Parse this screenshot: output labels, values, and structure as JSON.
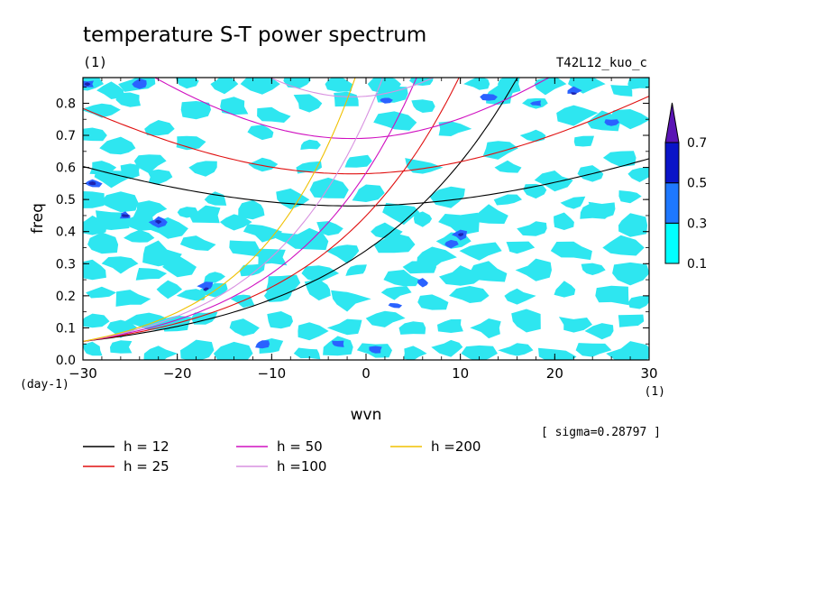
{
  "title": "temperature S-T power spectrum",
  "subtitle_left": "(1)",
  "subtitle_right": "T42L12_kuo_c",
  "sigma_note": "[ sigma=0.28797 ]",
  "chart_data": {
    "type": "contour",
    "xlabel": "wvn",
    "xunit": "(1)",
    "ylabel": "freq",
    "yunit": "(day-1)",
    "xlim": [
      -30,
      30
    ],
    "ylim": [
      0,
      0.88
    ],
    "xticks": [
      -30,
      -20,
      -10,
      0,
      10,
      20,
      30
    ],
    "yticks": [
      0.0,
      0.1,
      0.2,
      0.3,
      0.4,
      0.5,
      0.6,
      0.7,
      0.8
    ],
    "colorbar": {
      "levels": [
        0.1,
        0.3,
        0.5,
        0.7
      ],
      "colors": [
        "#00ffff",
        "#1e78ff",
        "#0a14c8",
        "#5a14b4"
      ],
      "extend": "max"
    },
    "fill_colors": {
      "light": "#2ee6f0",
      "mid": "#2a62ff",
      "dark": "#1c22b0"
    },
    "series": [
      {
        "name": "h = 12",
        "h": 12,
        "color": "#000000"
      },
      {
        "name": "h = 25",
        "h": 25,
        "color": "#e01010"
      },
      {
        "name": "h = 50",
        "h": 50,
        "color": "#d010c0"
      },
      {
        "name": "h =100",
        "h": 100,
        "color": "#d890e0"
      },
      {
        "name": "h =200",
        "h": 200,
        "color": "#f0c000"
      }
    ],
    "blobs_light": [
      [
        -29.5,
        0.86
      ],
      [
        -27,
        0.84
      ],
      [
        -24,
        0.86
      ],
      [
        -19,
        0.87
      ],
      [
        -15,
        0.86
      ],
      [
        -11,
        0.86
      ],
      [
        -7,
        0.87
      ],
      [
        -3,
        0.86
      ],
      [
        2,
        0.86
      ],
      [
        6,
        0.87
      ],
      [
        12,
        0.86
      ],
      [
        15,
        0.86
      ],
      [
        19,
        0.86
      ],
      [
        23,
        0.86
      ],
      [
        27,
        0.84
      ],
      [
        29,
        0.86
      ],
      [
        -28,
        0.78
      ],
      [
        -25,
        0.81
      ],
      [
        -22,
        0.72
      ],
      [
        -18,
        0.78
      ],
      [
        -14,
        0.79
      ],
      [
        -10,
        0.76
      ],
      [
        -6,
        0.8
      ],
      [
        -2,
        0.81
      ],
      [
        3,
        0.83
      ],
      [
        6,
        0.79
      ],
      [
        14,
        0.82
      ],
      [
        18,
        0.8
      ],
      [
        22,
        0.77
      ],
      [
        25,
        0.74
      ],
      [
        28,
        0.75
      ],
      [
        -29,
        0.7
      ],
      [
        -26,
        0.66
      ],
      [
        -23,
        0.62
      ],
      [
        -19,
        0.68
      ],
      [
        -11,
        0.71
      ],
      [
        -6,
        0.67
      ],
      [
        3,
        0.74
      ],
      [
        9,
        0.72
      ],
      [
        14,
        0.66
      ],
      [
        18,
        0.7
      ],
      [
        23,
        0.68
      ],
      [
        27,
        0.63
      ],
      [
        -28,
        0.6
      ],
      [
        -27,
        0.57
      ],
      [
        -25,
        0.59
      ],
      [
        -22,
        0.57
      ],
      [
        -17,
        0.6
      ],
      [
        -11,
        0.61
      ],
      [
        -6,
        0.6
      ],
      [
        -1,
        0.62
      ],
      [
        6,
        0.6
      ],
      [
        15,
        0.6
      ],
      [
        20,
        0.56
      ],
      [
        24,
        0.58
      ],
      [
        29,
        0.58
      ],
      [
        -29,
        0.5
      ],
      [
        -26,
        0.49
      ],
      [
        -23,
        0.47
      ],
      [
        -19,
        0.46
      ],
      [
        -16,
        0.5
      ],
      [
        -12,
        0.47
      ],
      [
        -8,
        0.5
      ],
      [
        -4,
        0.53
      ],
      [
        0,
        0.52
      ],
      [
        4,
        0.46
      ],
      [
        9,
        0.51
      ],
      [
        15,
        0.5
      ],
      [
        18,
        0.53
      ],
      [
        22,
        0.49
      ],
      [
        25,
        0.47
      ],
      [
        28,
        0.51
      ],
      [
        -29,
        0.42
      ],
      [
        -27,
        0.44
      ],
      [
        -24,
        0.43
      ],
      [
        -21,
        0.41
      ],
      [
        -17,
        0.45
      ],
      [
        -14,
        0.43
      ],
      [
        -11,
        0.4
      ],
      [
        -8,
        0.38
      ],
      [
        -4,
        0.41
      ],
      [
        2,
        0.4
      ],
      [
        6,
        0.44
      ],
      [
        10,
        0.43
      ],
      [
        13,
        0.45
      ],
      [
        18,
        0.41
      ],
      [
        21,
        0.43
      ],
      [
        24,
        0.46
      ],
      [
        28,
        0.42
      ],
      [
        -28,
        0.36
      ],
      [
        -24,
        0.38
      ],
      [
        -22,
        0.33
      ],
      [
        -18,
        0.36
      ],
      [
        -13,
        0.35
      ],
      [
        -10,
        0.32
      ],
      [
        -6,
        0.37
      ],
      [
        -2,
        0.34
      ],
      [
        3,
        0.36
      ],
      [
        7,
        0.32
      ],
      [
        9,
        0.37
      ],
      [
        12,
        0.34
      ],
      [
        16,
        0.35
      ],
      [
        22,
        0.34
      ],
      [
        27,
        0.35
      ],
      [
        -29,
        0.28
      ],
      [
        -26,
        0.3
      ],
      [
        -23,
        0.27
      ],
      [
        -20,
        0.29
      ],
      [
        -16,
        0.26
      ],
      [
        -12,
        0.28
      ],
      [
        -9,
        0.24
      ],
      [
        -5,
        0.27
      ],
      [
        -1,
        0.28
      ],
      [
        4,
        0.25
      ],
      [
        6,
        0.29
      ],
      [
        10,
        0.26
      ],
      [
        13,
        0.27
      ],
      [
        18,
        0.28
      ],
      [
        24,
        0.28
      ],
      [
        28,
        0.27
      ],
      [
        -28,
        0.21
      ],
      [
        -25,
        0.19
      ],
      [
        -21,
        0.22
      ],
      [
        -18,
        0.2
      ],
      [
        -16,
        0.22
      ],
      [
        -13,
        0.19
      ],
      [
        -9,
        0.2
      ],
      [
        -5,
        0.22
      ],
      [
        -2,
        0.19
      ],
      [
        3,
        0.21
      ],
      [
        7,
        0.18
      ],
      [
        11,
        0.2
      ],
      [
        16,
        0.2
      ],
      [
        21,
        0.22
      ],
      [
        26,
        0.2
      ],
      [
        29,
        0.18
      ],
      [
        -29,
        0.12
      ],
      [
        -26,
        0.1
      ],
      [
        -23,
        0.12
      ],
      [
        -20,
        0.11
      ],
      [
        -17,
        0.13
      ],
      [
        -13,
        0.1
      ],
      [
        -9,
        0.12
      ],
      [
        -6,
        0.09
      ],
      [
        -2,
        0.1
      ],
      [
        2,
        0.13
      ],
      [
        5,
        0.1
      ],
      [
        9,
        0.11
      ],
      [
        13,
        0.1
      ],
      [
        17,
        0.12
      ],
      [
        22,
        0.11
      ],
      [
        25,
        0.09
      ],
      [
        28,
        0.12
      ],
      [
        -29,
        0.03
      ],
      [
        -26,
        0.04
      ],
      [
        -22,
        0.02
      ],
      [
        -18,
        0.03
      ],
      [
        -14,
        0.02
      ],
      [
        -10,
        0.04
      ],
      [
        -6,
        0.02
      ],
      [
        -3,
        0.04
      ],
      [
        1,
        0.03
      ],
      [
        5,
        0.02
      ],
      [
        9,
        0.04
      ],
      [
        12,
        0.02
      ],
      [
        16,
        0.03
      ],
      [
        20,
        0.01
      ],
      [
        24,
        0.03
      ],
      [
        28,
        0.02
      ]
    ],
    "blobs_mid": [
      [
        -29.5,
        0.86
      ],
      [
        -29,
        0.55
      ],
      [
        -25.5,
        0.45
      ],
      [
        -22,
        0.43
      ],
      [
        -17,
        0.23
      ],
      [
        -11,
        0.05
      ],
      [
        -3,
        0.05
      ],
      [
        1,
        0.03
      ],
      [
        10,
        0.39
      ],
      [
        9,
        0.36
      ],
      [
        13,
        0.82
      ],
      [
        18,
        0.8
      ],
      [
        22,
        0.84
      ],
      [
        26,
        0.74
      ],
      [
        -24,
        0.86
      ],
      [
        2,
        0.81
      ],
      [
        3,
        0.17
      ],
      [
        6,
        0.24
      ]
    ],
    "blobs_dark": [
      [
        -29.5,
        0.86
      ],
      [
        -29,
        0.55
      ],
      [
        -25.5,
        0.45
      ],
      [
        -22,
        0.43
      ],
      [
        -17,
        0.22
      ],
      [
        10,
        0.39
      ],
      [
        22,
        0.83
      ]
    ]
  },
  "legend": [
    {
      "label": "h = 12",
      "color": "#000000"
    },
    {
      "label": "h = 25",
      "color": "#e01010"
    },
    {
      "label": "h = 50",
      "color": "#d010c0"
    },
    {
      "label": "h =100",
      "color": "#d890e0"
    },
    {
      "label": "h =200",
      "color": "#f0c000"
    }
  ]
}
